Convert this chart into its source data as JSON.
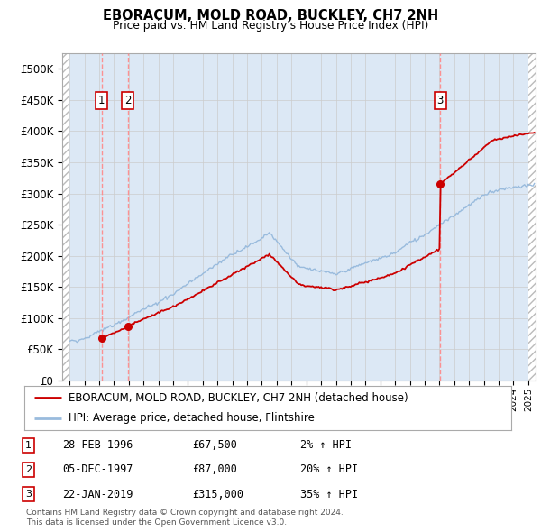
{
  "title": "EBORACUM, MOLD ROAD, BUCKLEY, CH7 2NH",
  "subtitle": "Price paid vs. HM Land Registry's House Price Index (HPI)",
  "legend_line1": "EBORACUM, MOLD ROAD, BUCKLEY, CH7 2NH (detached house)",
  "legend_line2": "HPI: Average price, detached house, Flintshire",
  "transactions": [
    {
      "num": 1,
      "date": "28-FEB-1996",
      "price": 67500,
      "pct": "2%",
      "year": 1996.16
    },
    {
      "num": 2,
      "date": "05-DEC-1997",
      "price": 87000,
      "pct": "20%",
      "year": 1997.92
    },
    {
      "num": 3,
      "date": "22-JAN-2019",
      "price": 315000,
      "pct": "35%",
      "year": 2019.06
    }
  ],
  "footnote1": "Contains HM Land Registry data © Crown copyright and database right 2024.",
  "footnote2": "This data is licensed under the Open Government Licence v3.0.",
  "ylim": [
    0,
    525000
  ],
  "yticks": [
    0,
    50000,
    100000,
    150000,
    200000,
    250000,
    300000,
    350000,
    400000,
    450000,
    500000
  ],
  "xlim_start": 1993.5,
  "xlim_end": 2025.5,
  "grid_color": "#cccccc",
  "sale_line_color": "#cc0000",
  "hpi_line_color": "#99bbdd",
  "marker_color": "#cc0000",
  "dashed_line_color": "#ff8888",
  "background_main": "#dce8f5"
}
